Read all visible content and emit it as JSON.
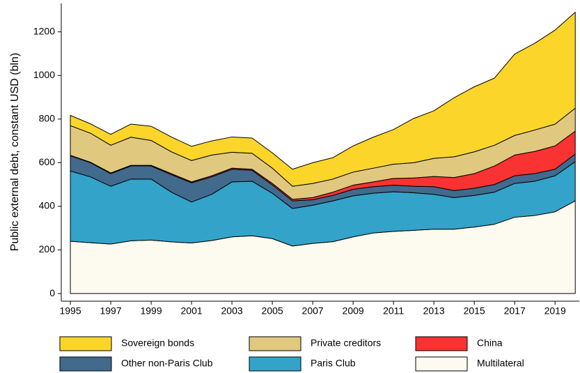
{
  "chart_data": {
    "type": "stacked_area",
    "y_label": "Public external debt, constant USD (bln)",
    "x": [
      1995,
      1996,
      1997,
      1998,
      1999,
      2000,
      2001,
      2002,
      2003,
      2004,
      2005,
      2006,
      2007,
      2008,
      2009,
      2010,
      2011,
      2012,
      2013,
      2014,
      2015,
      2016,
      2017,
      2018,
      2019,
      2020
    ],
    "xlim": [
      1994.55,
      2020.2
    ],
    "xticks": [
      1995,
      1997,
      1999,
      2001,
      2003,
      2005,
      2007,
      2009,
      2011,
      2013,
      2015,
      2017,
      2019
    ],
    "ylim": [
      -35,
      1330
    ],
    "yticks": [
      0,
      200,
      400,
      600,
      800,
      1000,
      1200
    ],
    "grid": false,
    "legend": "bottom",
    "series": [
      {
        "name": "Sovereign bonds",
        "color": "#fcd52a",
        "values": [
          47,
          43,
          50,
          60,
          65,
          68,
          65,
          65,
          70,
          70,
          70,
          78,
          95,
          98,
          120,
          142,
          159,
          203,
          218,
          271,
          298,
          308,
          373,
          398,
          431,
          440
        ]
      },
      {
        "name": "Private creditors",
        "color": "#e0c97e",
        "values": [
          136,
          133,
          127,
          129,
          114,
          100,
          98,
          95,
          73,
          73,
          70,
          60,
          65,
          60,
          60,
          63,
          65,
          70,
          83,
          95,
          100,
          95,
          90,
          98,
          100,
          105
        ]
      },
      {
        "name": "China",
        "color": "#f93232",
        "values": [
          2,
          2,
          3,
          3,
          3,
          5,
          4,
          5,
          5,
          5,
          7,
          7,
          10,
          15,
          19,
          22,
          31,
          38,
          47,
          60,
          67,
          85,
          95,
          102,
          107,
          105
        ]
      },
      {
        "name": "Other non-Paris Club",
        "color": "#426a8c",
        "values": [
          70,
          65,
          58,
          60,
          60,
          80,
          88,
          80,
          58,
          50,
          38,
          35,
          25,
          25,
          30,
          30,
          30,
          30,
          35,
          32,
          33,
          35,
          35,
          35,
          30,
          35
        ]
      },
      {
        "name": "Paris Club",
        "color": "#33a3c9",
        "values": [
          322,
          302,
          265,
          283,
          280,
          228,
          188,
          212,
          252,
          250,
          208,
          172,
          175,
          187,
          188,
          182,
          182,
          172,
          160,
          145,
          145,
          147,
          155,
          157,
          165,
          180
        ]
      },
      {
        "name": "Multilateral",
        "color": "#fdfaf0",
        "values": [
          240,
          233,
          227,
          242,
          245,
          237,
          232,
          243,
          260,
          265,
          252,
          218,
          230,
          238,
          260,
          278,
          285,
          290,
          295,
          295,
          305,
          318,
          350,
          358,
          375,
          425
        ]
      }
    ]
  }
}
